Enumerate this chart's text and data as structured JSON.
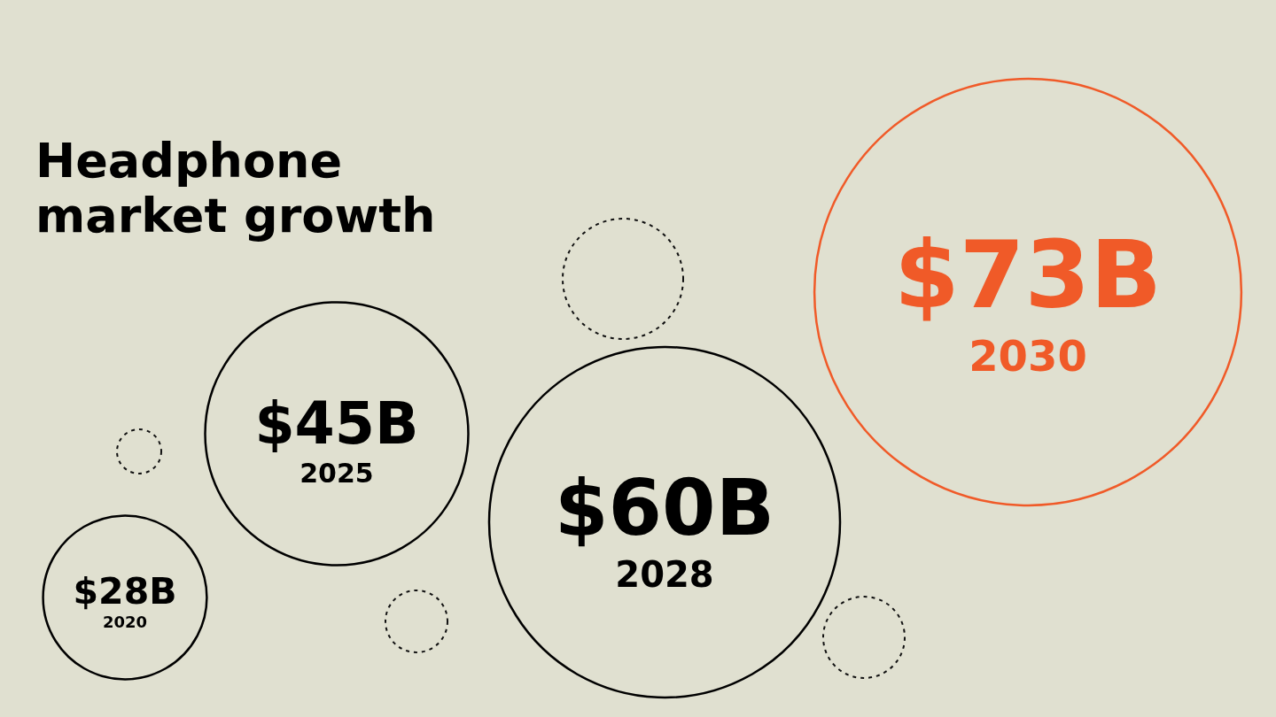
{
  "chart_data": {
    "type": "other",
    "title": "Headphone market growth",
    "categories": [
      "2020",
      "2025",
      "2028",
      "2030"
    ],
    "values": [
      28,
      45,
      60,
      73
    ],
    "value_labels": [
      "$28B",
      "$45B",
      "$60B",
      "$73B"
    ],
    "colors": [
      "#000000",
      "#000000",
      "#000000",
      "#f05a28"
    ]
  }
}
